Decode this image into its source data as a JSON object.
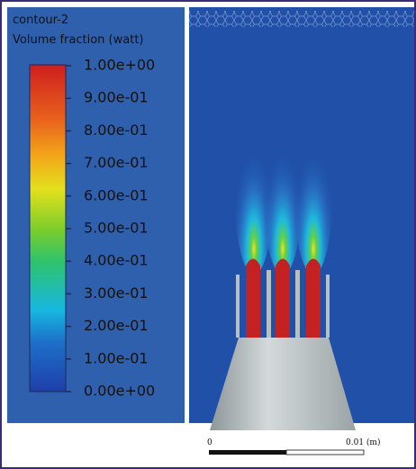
{
  "legend": {
    "title": "contour-2",
    "subtitle": "Volume fraction (watt)",
    "ticks": [
      {
        "value": 1.0,
        "label": "1.00e+00"
      },
      {
        "value": 0.9,
        "label": "9.00e-01"
      },
      {
        "value": 0.8,
        "label": "8.00e-01"
      },
      {
        "value": 0.7,
        "label": "7.00e-01"
      },
      {
        "value": 0.6,
        "label": "6.00e-01"
      },
      {
        "value": 0.5,
        "label": "5.00e-01"
      },
      {
        "value": 0.4,
        "label": "4.00e-01"
      },
      {
        "value": 0.3,
        "label": "3.00e-01"
      },
      {
        "value": 0.2,
        "label": "2.00e-01"
      },
      {
        "value": 0.1,
        "label": "1.00e-01"
      },
      {
        "value": 0.0,
        "label": "0.00e+00"
      }
    ]
  },
  "scale_bar": {
    "start": "0",
    "end": "0.01 (m)"
  }
}
